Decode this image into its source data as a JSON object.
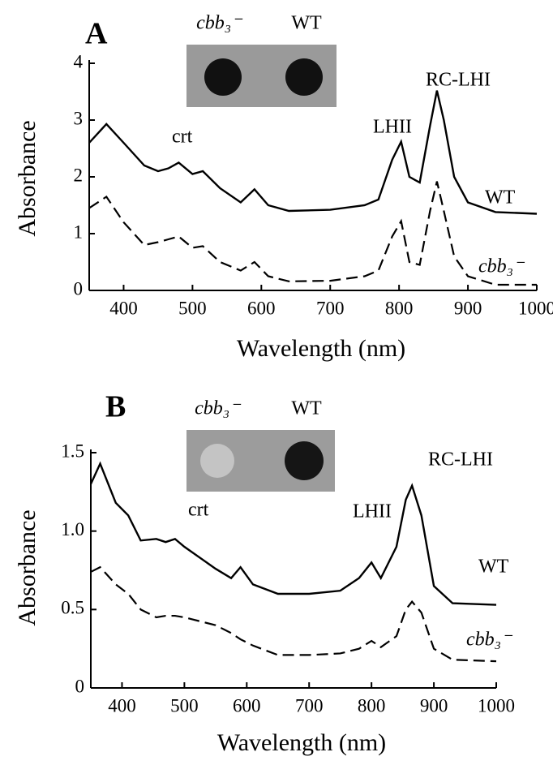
{
  "chart_data": [
    {
      "type": "line",
      "panel": "A",
      "xlabel": "Wavelength (nm)",
      "ylabel": "Absorbance",
      "inset": {
        "labels": [
          "cbb₃⁻",
          "WT"
        ]
      },
      "annotations": [
        "crt",
        "LHII",
        "RC-LHI",
        "WT",
        "cbb₃⁻"
      ],
      "xlim": [
        350,
        1000
      ],
      "xticks": [
        400,
        500,
        600,
        700,
        800,
        900,
        1000
      ],
      "ylim": [
        0,
        4
      ],
      "yticks": [
        0,
        1,
        2,
        3,
        4
      ],
      "x": [
        350,
        375,
        400,
        430,
        450,
        465,
        480,
        500,
        515,
        540,
        570,
        590,
        610,
        640,
        700,
        750,
        770,
        790,
        803,
        815,
        830,
        845,
        855,
        865,
        880,
        900,
        940,
        1000
      ],
      "series": [
        {
          "name": "WT",
          "color": "#000000",
          "dash": false,
          "values": [
            2.6,
            2.93,
            2.6,
            2.2,
            2.1,
            2.15,
            2.25,
            2.05,
            2.1,
            1.8,
            1.55,
            1.78,
            1.5,
            1.4,
            1.42,
            1.5,
            1.6,
            2.3,
            2.62,
            2.0,
            1.9,
            2.9,
            3.52,
            3.0,
            2.0,
            1.55,
            1.38,
            1.35
          ]
        },
        {
          "name": "cbb₃⁻",
          "color": "#000000",
          "dash": true,
          "values": [
            1.45,
            1.65,
            1.2,
            0.8,
            0.85,
            0.9,
            0.95,
            0.75,
            0.78,
            0.5,
            0.35,
            0.5,
            0.25,
            0.16,
            0.17,
            0.25,
            0.35,
            0.95,
            1.22,
            0.5,
            0.45,
            1.4,
            1.92,
            1.4,
            0.6,
            0.25,
            0.1,
            0.1
          ]
        }
      ]
    },
    {
      "type": "line",
      "panel": "B",
      "xlabel": "Wavelength (nm)",
      "ylabel": "Absorbance",
      "inset": {
        "labels": [
          "cbb₃⁻",
          "WT"
        ]
      },
      "annotations": [
        "crt",
        "LHII",
        "RC-LHI",
        "WT",
        "cbb₃⁻"
      ],
      "xlim": [
        350,
        1000
      ],
      "xticks": [
        400,
        500,
        600,
        700,
        800,
        900,
        1000
      ],
      "ylim": [
        0,
        1.5
      ],
      "yticks": [
        0,
        0.5,
        {
          "value": 1,
          "label": "1.0"
        },
        1.5
      ],
      "x": [
        350,
        365,
        390,
        410,
        430,
        455,
        470,
        485,
        500,
        550,
        575,
        590,
        610,
        650,
        700,
        750,
        780,
        800,
        815,
        840,
        855,
        865,
        880,
        900,
        930,
        1000
      ],
      "series": [
        {
          "name": "WT",
          "color": "#000000",
          "dash": false,
          "values": [
            1.3,
            1.43,
            1.18,
            1.1,
            0.94,
            0.95,
            0.93,
            0.95,
            0.9,
            0.76,
            0.7,
            0.77,
            0.66,
            0.6,
            0.6,
            0.62,
            0.7,
            0.8,
            0.7,
            0.9,
            1.2,
            1.29,
            1.1,
            0.65,
            0.54,
            0.53
          ]
        },
        {
          "name": "cbb₃⁻",
          "color": "#000000",
          "dash": true,
          "values": [
            0.74,
            0.77,
            0.66,
            0.6,
            0.5,
            0.45,
            0.46,
            0.46,
            0.45,
            0.4,
            0.35,
            0.31,
            0.27,
            0.21,
            0.21,
            0.22,
            0.25,
            0.3,
            0.26,
            0.33,
            0.5,
            0.55,
            0.48,
            0.25,
            0.18,
            0.17
          ]
        }
      ]
    }
  ]
}
